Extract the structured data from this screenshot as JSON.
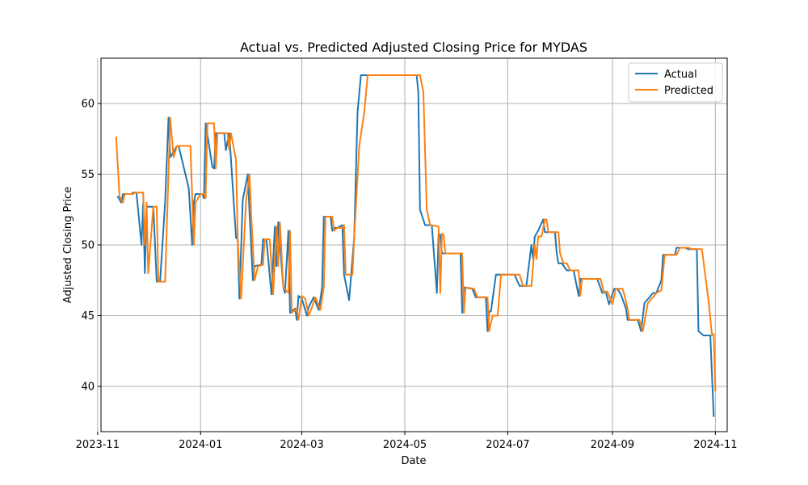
{
  "chart_data": {
    "type": "line",
    "title": "Actual vs. Predicted Adjusted Closing Price for MYDAS",
    "xlabel": "Date",
    "ylabel": "Adjusted Closing Price",
    "x_type": "date",
    "xlim": [
      "2023-11-03",
      "2024-11-08"
    ],
    "ylim": [
      36.8,
      63.2
    ],
    "x_ticks": [
      "2023-11-01",
      "2024-01-01",
      "2024-03-01",
      "2024-05-01",
      "2024-07-01",
      "2024-09-01",
      "2024-11-01"
    ],
    "x_tick_labels": [
      "2023-11",
      "2024-01",
      "2024-03",
      "2024-05",
      "2024-07",
      "2024-09",
      "2024-11"
    ],
    "y_ticks": [
      40,
      45,
      50,
      55,
      60
    ],
    "y_tick_labels": [
      "40",
      "45",
      "50",
      "55",
      "60"
    ],
    "grid": true,
    "legend_position": "top-right",
    "colors": {
      "actual": "#1f77b4",
      "predicted": "#ff7f0e"
    },
    "series": [
      {
        "name": "Actual",
        "color": "#1f77b4",
        "points": [
          [
            "2023-11-13",
            53.4
          ],
          [
            "2023-11-15",
            53.0
          ],
          [
            "2023-11-16",
            53.6
          ],
          [
            "2023-11-21",
            53.6
          ],
          [
            "2023-11-22",
            53.7
          ],
          [
            "2023-11-24",
            53.7
          ],
          [
            "2023-11-27",
            50.0
          ],
          [
            "2023-11-28",
            53.0
          ],
          [
            "2023-11-29",
            48.0
          ],
          [
            "2023-11-30",
            52.7
          ],
          [
            "2023-12-04",
            52.7
          ],
          [
            "2023-12-06",
            47.4
          ],
          [
            "2023-12-08",
            47.4
          ],
          [
            "2023-12-11",
            53.0
          ],
          [
            "2023-12-13",
            59.0
          ],
          [
            "2023-12-14",
            56.2
          ],
          [
            "2023-12-18",
            57.0
          ],
          [
            "2023-12-19",
            57.0
          ],
          [
            "2023-12-25",
            54.0
          ],
          [
            "2023-12-27",
            50.0
          ],
          [
            "2023-12-28",
            53.0
          ],
          [
            "2023-12-29",
            53.6
          ],
          [
            "2024-01-02",
            53.6
          ],
          [
            "2024-01-03",
            53.3
          ],
          [
            "2024-01-04",
            58.6
          ],
          [
            "2024-01-08",
            55.5
          ],
          [
            "2024-01-09",
            55.4
          ],
          [
            "2024-01-10",
            57.9
          ],
          [
            "2024-01-15",
            57.9
          ],
          [
            "2024-01-16",
            56.7
          ],
          [
            "2024-01-18",
            57.9
          ],
          [
            "2024-01-22",
            50.5
          ],
          [
            "2024-01-23",
            50.4
          ],
          [
            "2024-01-24",
            46.2
          ],
          [
            "2024-01-26",
            53.2
          ],
          [
            "2024-01-29",
            55.0
          ],
          [
            "2024-01-30",
            52.2
          ],
          [
            "2024-02-01",
            47.5
          ],
          [
            "2024-02-02",
            48.5
          ],
          [
            "2024-02-06",
            48.6
          ],
          [
            "2024-02-07",
            50.4
          ],
          [
            "2024-02-09",
            50.4
          ],
          [
            "2024-02-12",
            46.5
          ],
          [
            "2024-02-14",
            51.3
          ],
          [
            "2024-02-15",
            48.5
          ],
          [
            "2024-02-16",
            51.6
          ],
          [
            "2024-02-19",
            47.0
          ],
          [
            "2024-02-20",
            46.6
          ],
          [
            "2024-02-22",
            51.0
          ],
          [
            "2024-02-23",
            45.2
          ],
          [
            "2024-02-26",
            45.5
          ],
          [
            "2024-02-27",
            44.7
          ],
          [
            "2024-02-28",
            46.4
          ],
          [
            "2024-03-01",
            46.2
          ],
          [
            "2024-03-04",
            45.0
          ],
          [
            "2024-03-05",
            45.6
          ],
          [
            "2024-03-08",
            46.3
          ],
          [
            "2024-03-11",
            45.4
          ],
          [
            "2024-03-13",
            47.0
          ],
          [
            "2024-03-14",
            52.0
          ],
          [
            "2024-03-18",
            52.0
          ],
          [
            "2024-03-19",
            51.0
          ],
          [
            "2024-03-20",
            51.2
          ],
          [
            "2024-03-22",
            51.2
          ],
          [
            "2024-03-25",
            51.4
          ],
          [
            "2024-03-26",
            47.9
          ],
          [
            "2024-03-29",
            46.1
          ],
          [
            "2024-04-01",
            50.5
          ],
          [
            "2024-04-03",
            59.4
          ],
          [
            "2024-04-05",
            62.0
          ],
          [
            "2024-04-08",
            62.0
          ],
          [
            "2024-05-08",
            62.0
          ],
          [
            "2024-05-09",
            60.8
          ],
          [
            "2024-05-10",
            52.5
          ],
          [
            "2024-05-13",
            51.4
          ],
          [
            "2024-05-17",
            51.4
          ],
          [
            "2024-05-20",
            46.6
          ],
          [
            "2024-05-21",
            50.8
          ],
          [
            "2024-05-22",
            50.7
          ],
          [
            "2024-05-23",
            49.4
          ],
          [
            "2024-05-31",
            49.4
          ],
          [
            "2024-06-03",
            49.4
          ],
          [
            "2024-06-04",
            45.2
          ],
          [
            "2024-06-05",
            47.0
          ],
          [
            "2024-06-10",
            46.9
          ],
          [
            "2024-06-12",
            46.3
          ],
          [
            "2024-06-18",
            46.3
          ],
          [
            "2024-06-19",
            43.9
          ],
          [
            "2024-06-20",
            45.3
          ],
          [
            "2024-06-21",
            45.3
          ],
          [
            "2024-06-24",
            47.9
          ],
          [
            "2024-07-03",
            47.9
          ],
          [
            "2024-07-05",
            47.9
          ],
          [
            "2024-07-08",
            47.1
          ],
          [
            "2024-07-10",
            47.1
          ],
          [
            "2024-07-12",
            47.1
          ],
          [
            "2024-07-15",
            50.0
          ],
          [
            "2024-07-16",
            49.0
          ],
          [
            "2024-07-17",
            50.6
          ],
          [
            "2024-07-19",
            51.0
          ],
          [
            "2024-07-22",
            51.8
          ],
          [
            "2024-07-23",
            50.9
          ],
          [
            "2024-07-24",
            50.9
          ],
          [
            "2024-07-29",
            50.9
          ],
          [
            "2024-07-30",
            49.4
          ],
          [
            "2024-07-31",
            48.7
          ],
          [
            "2024-08-02",
            48.7
          ],
          [
            "2024-08-05",
            48.2
          ],
          [
            "2024-08-09",
            48.2
          ],
          [
            "2024-08-12",
            46.4
          ],
          [
            "2024-08-13",
            47.6
          ],
          [
            "2024-08-14",
            47.6
          ],
          [
            "2024-08-20",
            47.6
          ],
          [
            "2024-08-23",
            47.6
          ],
          [
            "2024-08-26",
            46.6
          ],
          [
            "2024-08-28",
            46.7
          ],
          [
            "2024-08-30",
            45.8
          ],
          [
            "2024-09-02",
            46.9
          ],
          [
            "2024-09-04",
            46.9
          ],
          [
            "2024-09-06",
            46.5
          ],
          [
            "2024-09-09",
            45.5
          ],
          [
            "2024-09-10",
            44.7
          ],
          [
            "2024-09-16",
            44.7
          ],
          [
            "2024-09-18",
            43.9
          ],
          [
            "2024-09-20",
            45.9
          ],
          [
            "2024-09-23",
            46.3
          ],
          [
            "2024-09-25",
            46.6
          ],
          [
            "2024-09-27",
            46.6
          ],
          [
            "2024-09-30",
            47.5
          ],
          [
            "2024-10-01",
            49.3
          ],
          [
            "2024-10-02",
            49.3
          ],
          [
            "2024-10-07",
            49.3
          ],
          [
            "2024-10-08",
            49.3
          ],
          [
            "2024-10-09",
            49.8
          ],
          [
            "2024-10-14",
            49.8
          ],
          [
            "2024-10-16",
            49.7
          ],
          [
            "2024-10-21",
            49.7
          ],
          [
            "2024-10-22",
            43.9
          ],
          [
            "2024-10-25",
            43.6
          ],
          [
            "2024-10-28",
            43.6
          ],
          [
            "2024-10-29",
            43.6
          ],
          [
            "2024-10-31",
            37.9
          ]
        ]
      },
      {
        "name": "Predicted",
        "color": "#ff7f0e",
        "points": [
          [
            "2023-11-12",
            57.6
          ],
          [
            "2023-11-14",
            53.4
          ],
          [
            "2023-11-16",
            53.0
          ],
          [
            "2023-11-17",
            53.6
          ],
          [
            "2023-11-22",
            53.6
          ],
          [
            "2023-11-23",
            53.7
          ],
          [
            "2023-11-28",
            53.7
          ],
          [
            "2023-11-29",
            50.0
          ],
          [
            "2023-11-30",
            53.0
          ],
          [
            "2023-12-01",
            48.0
          ],
          [
            "2023-12-04",
            52.7
          ],
          [
            "2023-12-06",
            52.7
          ],
          [
            "2023-12-07",
            47.4
          ],
          [
            "2023-12-11",
            47.4
          ],
          [
            "2023-12-14",
            59.0
          ],
          [
            "2023-12-16",
            56.2
          ],
          [
            "2023-12-18",
            57.0
          ],
          [
            "2023-12-20",
            57.0
          ],
          [
            "2023-12-26",
            57.0
          ],
          [
            "2023-12-28",
            50.0
          ],
          [
            "2023-12-29",
            53.0
          ],
          [
            "2024-01-01",
            53.6
          ],
          [
            "2024-01-03",
            53.6
          ],
          [
            "2024-01-04",
            53.3
          ],
          [
            "2024-01-05",
            58.6
          ],
          [
            "2024-01-09",
            58.6
          ],
          [
            "2024-01-10",
            55.4
          ],
          [
            "2024-01-11",
            57.9
          ],
          [
            "2024-01-17",
            57.9
          ],
          [
            "2024-01-18",
            56.7
          ],
          [
            "2024-01-19",
            57.9
          ],
          [
            "2024-01-22",
            56.0
          ],
          [
            "2024-01-23",
            50.4
          ],
          [
            "2024-01-25",
            46.2
          ],
          [
            "2024-01-28",
            53.2
          ],
          [
            "2024-01-30",
            55.0
          ],
          [
            "2024-01-31",
            52.2
          ],
          [
            "2024-02-02",
            47.5
          ],
          [
            "2024-02-04",
            48.5
          ],
          [
            "2024-02-07",
            48.6
          ],
          [
            "2024-02-08",
            50.4
          ],
          [
            "2024-02-11",
            50.4
          ],
          [
            "2024-02-13",
            46.5
          ],
          [
            "2024-02-15",
            51.3
          ],
          [
            "2024-02-16",
            48.5
          ],
          [
            "2024-02-17",
            51.6
          ],
          [
            "2024-02-19",
            47.0
          ],
          [
            "2024-02-22",
            46.6
          ],
          [
            "2024-02-23",
            51.0
          ],
          [
            "2024-02-24",
            45.2
          ],
          [
            "2024-02-27",
            45.5
          ],
          [
            "2024-02-28",
            44.7
          ],
          [
            "2024-03-01",
            46.4
          ],
          [
            "2024-03-03",
            46.2
          ],
          [
            "2024-03-05",
            45.0
          ],
          [
            "2024-03-07",
            45.6
          ],
          [
            "2024-03-09",
            46.3
          ],
          [
            "2024-03-12",
            45.4
          ],
          [
            "2024-03-14",
            47.0
          ],
          [
            "2024-03-15",
            52.0
          ],
          [
            "2024-03-19",
            52.0
          ],
          [
            "2024-03-20",
            51.0
          ],
          [
            "2024-03-22",
            51.2
          ],
          [
            "2024-03-25",
            51.2
          ],
          [
            "2024-03-26",
            51.4
          ],
          [
            "2024-03-27",
            47.9
          ],
          [
            "2024-03-31",
            47.9
          ],
          [
            "2024-04-01",
            50.5
          ],
          [
            "2024-04-04",
            57.0
          ],
          [
            "2024-04-07",
            59.4
          ],
          [
            "2024-04-09",
            62.0
          ],
          [
            "2024-05-10",
            62.0
          ],
          [
            "2024-05-12",
            60.8
          ],
          [
            "2024-05-14",
            52.5
          ],
          [
            "2024-05-16",
            51.4
          ],
          [
            "2024-05-21",
            51.3
          ],
          [
            "2024-05-22",
            46.6
          ],
          [
            "2024-05-23",
            50.8
          ],
          [
            "2024-05-24",
            50.7
          ],
          [
            "2024-05-25",
            49.4
          ],
          [
            "2024-06-04",
            49.4
          ],
          [
            "2024-06-05",
            45.2
          ],
          [
            "2024-06-06",
            47.0
          ],
          [
            "2024-06-11",
            46.9
          ],
          [
            "2024-06-13",
            46.3
          ],
          [
            "2024-06-19",
            46.3
          ],
          [
            "2024-06-20",
            43.9
          ],
          [
            "2024-06-22",
            45.0
          ],
          [
            "2024-06-25",
            45.0
          ],
          [
            "2024-06-27",
            47.9
          ],
          [
            "2024-07-06",
            47.9
          ],
          [
            "2024-07-08",
            47.9
          ],
          [
            "2024-07-10",
            47.1
          ],
          [
            "2024-07-15",
            47.1
          ],
          [
            "2024-07-17",
            50.0
          ],
          [
            "2024-07-18",
            49.0
          ],
          [
            "2024-07-19",
            50.6
          ],
          [
            "2024-07-21",
            50.6
          ],
          [
            "2024-07-23",
            51.8
          ],
          [
            "2024-07-24",
            51.8
          ],
          [
            "2024-07-25",
            50.9
          ],
          [
            "2024-07-31",
            50.9
          ],
          [
            "2024-08-01",
            49.4
          ],
          [
            "2024-08-03",
            48.7
          ],
          [
            "2024-08-05",
            48.7
          ],
          [
            "2024-08-07",
            48.2
          ],
          [
            "2024-08-12",
            48.2
          ],
          [
            "2024-08-13",
            46.4
          ],
          [
            "2024-08-14",
            47.6
          ],
          [
            "2024-08-19",
            47.6
          ],
          [
            "2024-08-25",
            47.6
          ],
          [
            "2024-08-27",
            46.6
          ],
          [
            "2024-08-29",
            46.7
          ],
          [
            "2024-09-01",
            45.8
          ],
          [
            "2024-09-03",
            46.9
          ],
          [
            "2024-09-07",
            46.9
          ],
          [
            "2024-09-08",
            46.5
          ],
          [
            "2024-09-10",
            45.5
          ],
          [
            "2024-09-11",
            44.7
          ],
          [
            "2024-09-17",
            44.7
          ],
          [
            "2024-09-19",
            43.9
          ],
          [
            "2024-09-22",
            45.9
          ],
          [
            "2024-09-25",
            46.3
          ],
          [
            "2024-09-27",
            46.6
          ],
          [
            "2024-09-30",
            46.8
          ],
          [
            "2024-10-02",
            49.3
          ],
          [
            "2024-10-09",
            49.3
          ],
          [
            "2024-10-11",
            49.8
          ],
          [
            "2024-10-16",
            49.8
          ],
          [
            "2024-10-18",
            49.7
          ],
          [
            "2024-10-24",
            49.7
          ],
          [
            "2024-10-28",
            46.0
          ],
          [
            "2024-10-30",
            43.6
          ],
          [
            "2024-10-31",
            43.7
          ],
          [
            "2024-11-01",
            39.7
          ]
        ]
      }
    ]
  }
}
